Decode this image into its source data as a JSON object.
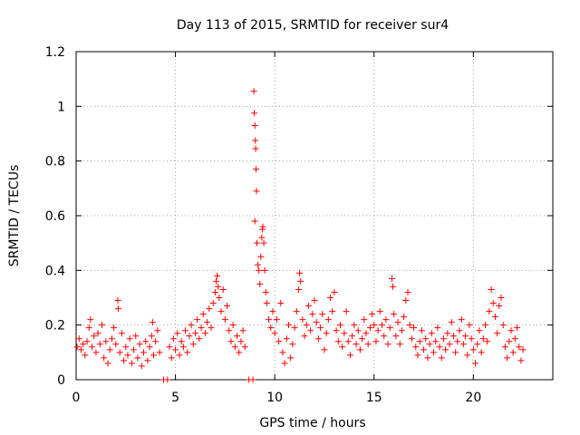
{
  "chart_data": {
    "type": "scatter",
    "title": "Day 113 of 2015, SRMTID for receiver sur4",
    "xlabel": "GPS time / hours",
    "ylabel": "SRMTID / TECUs",
    "xlim": [
      0,
      24
    ],
    "ylim": [
      0,
      1.2
    ],
    "x_ticks": [
      0,
      5,
      10,
      15,
      20
    ],
    "y_ticks": [
      0,
      0.2,
      0.4,
      0.6,
      0.8,
      1,
      1.2
    ],
    "x_tick_labels": [
      "0",
      "5",
      "10",
      "15",
      "20"
    ],
    "y_tick_labels": [
      "0",
      "0.2",
      "0.4",
      "0.6",
      "0.8",
      "1",
      "1.2"
    ],
    "grid": true,
    "marker": "+",
    "color": "#ff0000",
    "series": [
      {
        "name": "SRMTID",
        "points": [
          [
            0.05,
            0.12
          ],
          [
            0.15,
            0.15
          ],
          [
            0.25,
            0.11
          ],
          [
            0.35,
            0.13
          ],
          [
            0.45,
            0.09
          ],
          [
            0.55,
            0.14
          ],
          [
            0.65,
            0.19
          ],
          [
            0.72,
            0.22
          ],
          [
            0.8,
            0.12
          ],
          [
            0.9,
            0.16
          ],
          [
            1.0,
            0.1
          ],
          [
            1.1,
            0.17
          ],
          [
            1.2,
            0.13
          ],
          [
            1.3,
            0.2
          ],
          [
            1.4,
            0.08
          ],
          [
            1.5,
            0.14
          ],
          [
            1.6,
            0.06
          ],
          [
            1.7,
            0.11
          ],
          [
            1.8,
            0.15
          ],
          [
            1.9,
            0.19
          ],
          [
            2.0,
            0.13
          ],
          [
            2.1,
            0.29
          ],
          [
            2.12,
            0.26
          ],
          [
            2.2,
            0.1
          ],
          [
            2.3,
            0.17
          ],
          [
            2.4,
            0.07
          ],
          [
            2.5,
            0.12
          ],
          [
            2.6,
            0.09
          ],
          [
            2.7,
            0.15
          ],
          [
            2.8,
            0.06
          ],
          [
            2.9,
            0.11
          ],
          [
            3.0,
            0.16
          ],
          [
            3.1,
            0.08
          ],
          [
            3.2,
            0.13
          ],
          [
            3.3,
            0.05
          ],
          [
            3.4,
            0.1
          ],
          [
            3.5,
            0.14
          ],
          [
            3.6,
            0.07
          ],
          [
            3.7,
            0.12
          ],
          [
            3.8,
            0.16
          ],
          [
            3.85,
            0.21
          ],
          [
            3.9,
            0.09
          ],
          [
            4.0,
            0.14
          ],
          [
            4.1,
            0.18
          ],
          [
            4.2,
            0.1
          ],
          [
            4.4,
            0.0
          ],
          [
            4.6,
            0.0
          ],
          [
            4.7,
            0.12
          ],
          [
            4.8,
            0.08
          ],
          [
            4.9,
            0.15
          ],
          [
            5.0,
            0.11
          ],
          [
            5.1,
            0.17
          ],
          [
            5.2,
            0.09
          ],
          [
            5.3,
            0.14
          ],
          [
            5.4,
            0.12
          ],
          [
            5.5,
            0.18
          ],
          [
            5.6,
            0.1
          ],
          [
            5.7,
            0.16
          ],
          [
            5.8,
            0.2
          ],
          [
            5.9,
            0.13
          ],
          [
            6.0,
            0.17
          ],
          [
            6.1,
            0.22
          ],
          [
            6.2,
            0.15
          ],
          [
            6.3,
            0.19
          ],
          [
            6.4,
            0.24
          ],
          [
            6.5,
            0.17
          ],
          [
            6.6,
            0.21
          ],
          [
            6.7,
            0.26
          ],
          [
            6.8,
            0.19
          ],
          [
            6.9,
            0.28
          ],
          [
            7.0,
            0.32
          ],
          [
            7.05,
            0.36
          ],
          [
            7.1,
            0.38
          ],
          [
            7.15,
            0.34
          ],
          [
            7.2,
            0.3
          ],
          [
            7.3,
            0.25
          ],
          [
            7.4,
            0.33
          ],
          [
            7.5,
            0.22
          ],
          [
            7.6,
            0.27
          ],
          [
            7.7,
            0.18
          ],
          [
            7.8,
            0.14
          ],
          [
            7.9,
            0.2
          ],
          [
            8.0,
            0.12
          ],
          [
            8.1,
            0.16
          ],
          [
            8.2,
            0.1
          ],
          [
            8.3,
            0.14
          ],
          [
            8.4,
            0.18
          ],
          [
            8.5,
            0.12
          ],
          [
            8.7,
            0.0
          ],
          [
            8.9,
            0.0
          ],
          [
            8.95,
            1.055
          ],
          [
            8.97,
            0.975
          ],
          [
            9.0,
            0.93
          ],
          [
            9.02,
            0.875
          ],
          [
            9.04,
            0.845
          ],
          [
            9.06,
            0.77
          ],
          [
            9.08,
            0.69
          ],
          [
            9.0,
            0.58
          ],
          [
            9.1,
            0.5
          ],
          [
            9.15,
            0.42
          ],
          [
            9.2,
            0.4
          ],
          [
            9.25,
            0.35
          ],
          [
            9.3,
            0.45
          ],
          [
            9.35,
            0.52
          ],
          [
            9.38,
            0.55
          ],
          [
            9.4,
            0.56
          ],
          [
            9.45,
            0.5
          ],
          [
            9.5,
            0.4
          ],
          [
            9.55,
            0.32
          ],
          [
            9.6,
            0.28
          ],
          [
            9.7,
            0.22
          ],
          [
            9.8,
            0.19
          ],
          [
            9.9,
            0.25
          ],
          [
            10.0,
            0.17
          ],
          [
            10.1,
            0.22
          ],
          [
            10.2,
            0.14
          ],
          [
            10.3,
            0.28
          ],
          [
            10.4,
            0.1
          ],
          [
            10.5,
            0.06
          ],
          [
            10.6,
            0.15
          ],
          [
            10.7,
            0.2
          ],
          [
            10.8,
            0.08
          ],
          [
            10.9,
            0.13
          ],
          [
            11.0,
            0.19
          ],
          [
            11.1,
            0.25
          ],
          [
            11.2,
            0.33
          ],
          [
            11.25,
            0.39
          ],
          [
            11.3,
            0.36
          ],
          [
            11.4,
            0.22
          ],
          [
            11.5,
            0.16
          ],
          [
            11.6,
            0.2
          ],
          [
            11.7,
            0.27
          ],
          [
            11.8,
            0.18
          ],
          [
            11.9,
            0.24
          ],
          [
            12.0,
            0.29
          ],
          [
            12.1,
            0.21
          ],
          [
            12.2,
            0.15
          ],
          [
            12.3,
            0.19
          ],
          [
            12.4,
            0.24
          ],
          [
            12.5,
            0.11
          ],
          [
            12.6,
            0.17
          ],
          [
            12.7,
            0.22
          ],
          [
            12.8,
            0.3
          ],
          [
            12.9,
            0.25
          ],
          [
            13.0,
            0.32
          ],
          [
            13.1,
            0.18
          ],
          [
            13.2,
            0.14
          ],
          [
            13.3,
            0.2
          ],
          [
            13.4,
            0.12
          ],
          [
            13.5,
            0.17
          ],
          [
            13.6,
            0.25
          ],
          [
            13.7,
            0.14
          ],
          [
            13.8,
            0.09
          ],
          [
            13.9,
            0.16
          ],
          [
            14.0,
            0.2
          ],
          [
            14.1,
            0.13
          ],
          [
            14.2,
            0.18
          ],
          [
            14.3,
            0.11
          ],
          [
            14.4,
            0.15
          ],
          [
            14.5,
            0.22
          ],
          [
            14.6,
            0.17
          ],
          [
            14.7,
            0.13
          ],
          [
            14.8,
            0.19
          ],
          [
            14.9,
            0.24
          ],
          [
            15.0,
            0.2
          ],
          [
            15.1,
            0.14
          ],
          [
            15.2,
            0.18
          ],
          [
            15.3,
            0.25
          ],
          [
            15.4,
            0.2
          ],
          [
            15.5,
            0.16
          ],
          [
            15.6,
            0.22
          ],
          [
            15.7,
            0.13
          ],
          [
            15.8,
            0.19
          ],
          [
            15.9,
            0.37
          ],
          [
            15.95,
            0.34
          ],
          [
            16.0,
            0.24
          ],
          [
            16.1,
            0.16
          ],
          [
            16.2,
            0.21
          ],
          [
            16.3,
            0.13
          ],
          [
            16.4,
            0.18
          ],
          [
            16.5,
            0.23
          ],
          [
            16.6,
            0.29
          ],
          [
            16.7,
            0.32
          ],
          [
            16.8,
            0.2
          ],
          [
            16.9,
            0.15
          ],
          [
            17.0,
            0.19
          ],
          [
            17.1,
            0.12
          ],
          [
            17.2,
            0.09
          ],
          [
            17.3,
            0.14
          ],
          [
            17.4,
            0.18
          ],
          [
            17.5,
            0.11
          ],
          [
            17.6,
            0.15
          ],
          [
            17.7,
            0.08
          ],
          [
            17.8,
            0.13
          ],
          [
            17.9,
            0.17
          ],
          [
            18.0,
            0.1
          ],
          [
            18.1,
            0.14
          ],
          [
            18.2,
            0.19
          ],
          [
            18.3,
            0.12
          ],
          [
            18.4,
            0.08
          ],
          [
            18.5,
            0.15
          ],
          [
            18.6,
            0.11
          ],
          [
            18.7,
            0.17
          ],
          [
            18.8,
            0.13
          ],
          [
            18.9,
            0.21
          ],
          [
            19.0,
            0.16
          ],
          [
            19.1,
            0.1
          ],
          [
            19.2,
            0.14
          ],
          [
            19.3,
            0.18
          ],
          [
            19.4,
            0.22
          ],
          [
            19.5,
            0.13
          ],
          [
            19.6,
            0.16
          ],
          [
            19.7,
            0.09
          ],
          [
            19.8,
            0.2
          ],
          [
            19.9,
            0.15
          ],
          [
            20.0,
            0.11
          ],
          [
            20.1,
            0.06
          ],
          [
            20.2,
            0.13
          ],
          [
            20.3,
            0.18
          ],
          [
            20.4,
            0.1
          ],
          [
            20.5,
            0.15
          ],
          [
            20.6,
            0.2
          ],
          [
            20.7,
            0.14
          ],
          [
            20.8,
            0.25
          ],
          [
            20.9,
            0.33
          ],
          [
            21.0,
            0.28
          ],
          [
            21.1,
            0.23
          ],
          [
            21.2,
            0.17
          ],
          [
            21.3,
            0.27
          ],
          [
            21.4,
            0.3
          ],
          [
            21.5,
            0.2
          ],
          [
            21.6,
            0.12
          ],
          [
            21.7,
            0.08
          ],
          [
            21.8,
            0.14
          ],
          [
            21.9,
            0.18
          ],
          [
            22.0,
            0.1
          ],
          [
            22.1,
            0.15
          ],
          [
            22.2,
            0.19
          ],
          [
            22.3,
            0.12
          ],
          [
            22.4,
            0.07
          ],
          [
            22.5,
            0.11
          ]
        ]
      }
    ]
  }
}
